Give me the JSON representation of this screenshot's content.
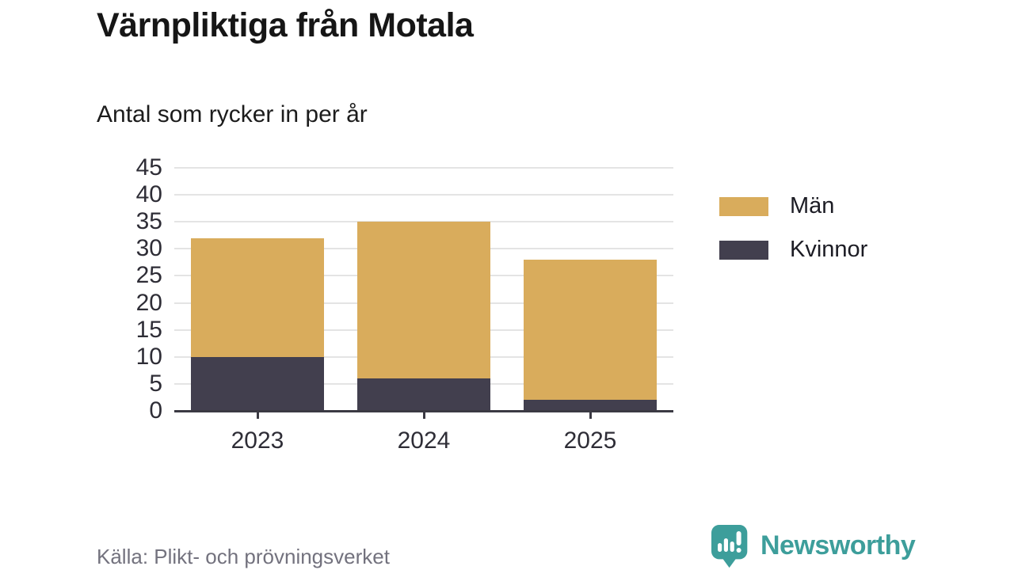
{
  "header": {
    "title": "Värnpliktiga från Motala",
    "subtitle": "Antal som rycker in per år"
  },
  "chart_data": {
    "type": "bar",
    "stacked": true,
    "title": "Värnpliktiga från Motala",
    "subtitle": "Antal som rycker in per år",
    "categories": [
      "2023",
      "2024",
      "2025"
    ],
    "series": [
      {
        "name": "Män",
        "color": "#D9AC5C",
        "values": [
          22,
          29,
          26
        ]
      },
      {
        "name": "Kvinnor",
        "color": "#423F4E",
        "values": [
          10,
          6,
          2
        ]
      }
    ],
    "stack_order_bottom_to_top": [
      "Kvinnor",
      "Män"
    ],
    "totals": [
      32,
      35,
      28
    ],
    "xlabel": "",
    "ylabel": "",
    "ylim": [
      0,
      45
    ],
    "yticks": [
      0,
      5,
      10,
      15,
      20,
      25,
      30,
      35,
      40,
      45
    ],
    "grid": true,
    "legend_position": "right-top"
  },
  "footer": {
    "source": "Källa: Plikt- och prövningsverket",
    "brand": "Newsworthy",
    "brand_color": "#3D9E9B",
    "logo_icon": "newsworthy-speech-bubble-bar-chart-icon"
  },
  "colors": {
    "men": "#D9AC5C",
    "women": "#423F4E",
    "gridline": "#E4E4E4",
    "axis": "#3B3A43",
    "text": "#1A1A1A",
    "muted_text": "#73727E",
    "brand_teal": "#3D9E9B"
  }
}
